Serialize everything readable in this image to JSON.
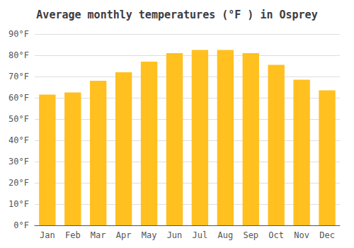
{
  "chart_data": {
    "type": "bar",
    "title": "Average monthly temperatures (°F ) in Osprey",
    "categories": [
      "Jan",
      "Feb",
      "Mar",
      "Apr",
      "May",
      "Jun",
      "Jul",
      "Aug",
      "Sep",
      "Oct",
      "Nov",
      "Dec"
    ],
    "values": [
      61.5,
      62.5,
      68,
      72,
      77,
      81,
      82.5,
      82.5,
      81,
      75.5,
      68.5,
      63.5
    ],
    "color": "#FFC020",
    "ylim": [
      0,
      90
    ],
    "yticks": [
      {
        "value": 0,
        "label": "0°F"
      },
      {
        "value": 10,
        "label": "10°F"
      },
      {
        "value": 20,
        "label": "20°F"
      },
      {
        "value": 30,
        "label": "30°F"
      },
      {
        "value": 40,
        "label": "40°F"
      },
      {
        "value": 50,
        "label": "50°F"
      },
      {
        "value": 60,
        "label": "60°F"
      },
      {
        "value": 70,
        "label": "70°F"
      },
      {
        "value": 80,
        "label": "80°F"
      },
      {
        "value": 90,
        "label": "90°F"
      }
    ],
    "grid": true
  }
}
